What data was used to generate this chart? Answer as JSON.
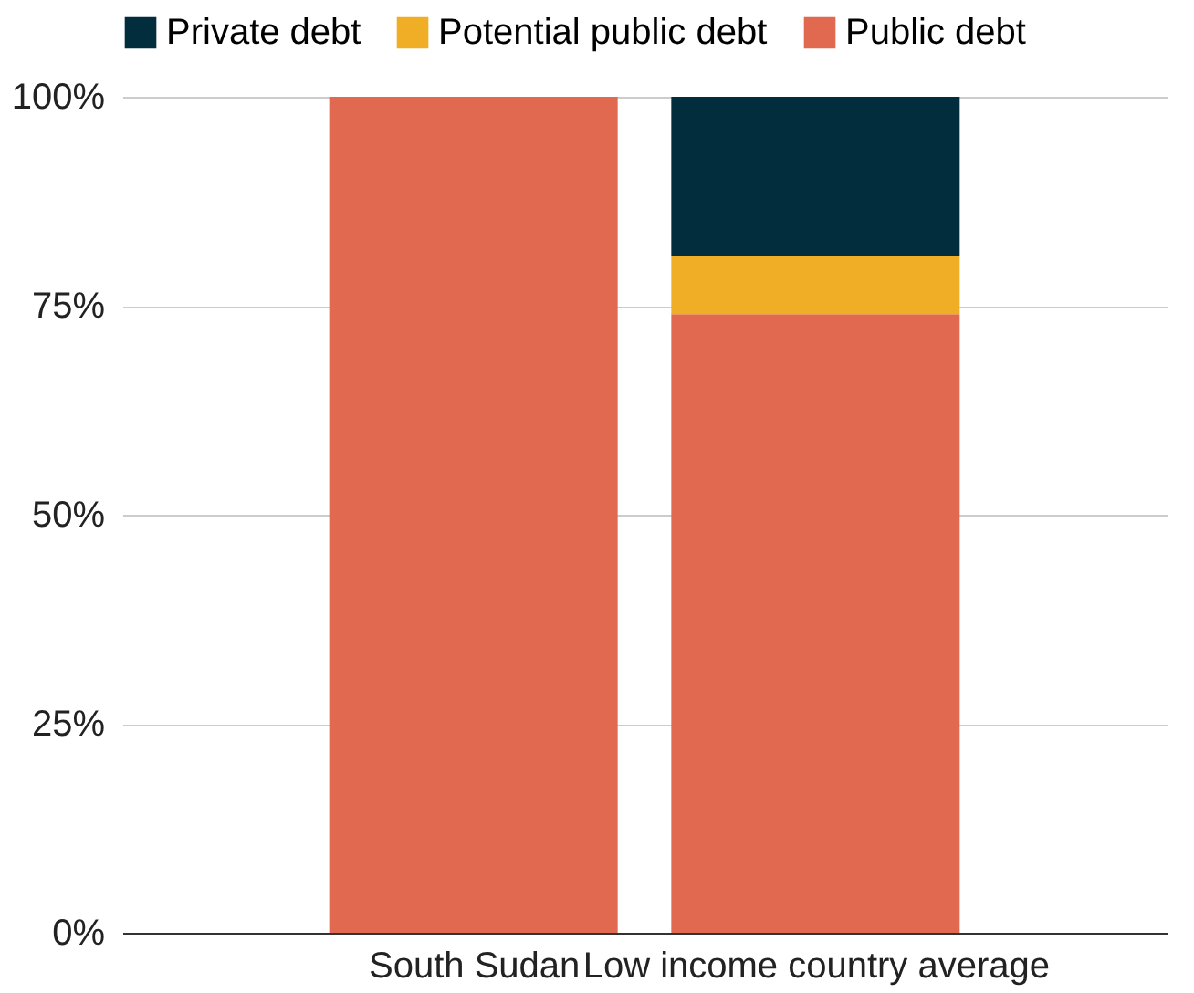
{
  "chart_data": {
    "type": "bar",
    "stacked": true,
    "categories": [
      "South Sudan",
      "Low income country average"
    ],
    "series": [
      {
        "name": "Public debt",
        "color": "#e06950",
        "values": [
          100,
          74
        ]
      },
      {
        "name": "Potential public debt",
        "color": "#efae25",
        "values": [
          0,
          7
        ]
      },
      {
        "name": "Private debt",
        "color": "#022d3c",
        "values": [
          0,
          19
        ]
      }
    ],
    "ylim": [
      0,
      100
    ],
    "yticks": [
      {
        "value": 0,
        "label": "0%"
      },
      {
        "value": 25,
        "label": "25%"
      },
      {
        "value": 50,
        "label": "50%"
      },
      {
        "value": 75,
        "label": "75%"
      },
      {
        "value": 100,
        "label": "100%"
      }
    ],
    "grid": "y",
    "legend": "top"
  }
}
